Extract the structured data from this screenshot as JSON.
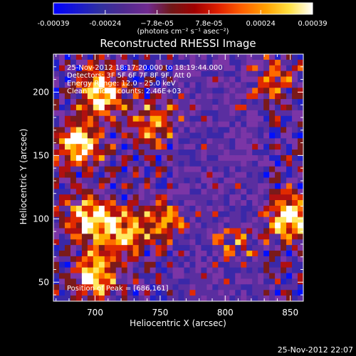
{
  "colors": {
    "background": "#000000",
    "foreground": "#ffffff",
    "colormap": [
      "#0010ff",
      "#2020c8",
      "#3a28a8",
      "#5a2ea0",
      "#7b35a6",
      "#7a1a1a",
      "#b01010",
      "#e02a00",
      "#ff6a00",
      "#ffb000",
      "#ffe860",
      "#ffffff"
    ]
  },
  "colorbar": {
    "ticks": [
      "-0.00039",
      "-0.00024",
      "−7.8e-05",
      "7.8e-05",
      "0.00024",
      "0.00039"
    ],
    "unit_label": "(photons cm⁻² s⁻¹ asec⁻²)"
  },
  "footer": {
    "timestamp": "25-Nov-2012 22:07"
  },
  "chart_data": {
    "type": "heatmap",
    "title": "Reconstructed RHESSI Image",
    "xlabel": "Heliocentric X (arcsec)",
    "ylabel": "Heliocentric Y (arcsec)",
    "xlim": [
      668,
      860
    ],
    "ylim": [
      35,
      230
    ],
    "x_ticks": [
      700,
      750,
      800,
      850
    ],
    "y_ticks": [
      50,
      100,
      150,
      200
    ],
    "value_range": [
      -0.00039,
      0.00039
    ],
    "info_lines": [
      "25-Nov-2012 18:17:20.000 to 18:19:44.000",
      "Detectors: 3F 5F 6F 7F 8F 9F, Att 0",
      "Energy Range: 12.0 - 25.0 keV",
      "Clean     Total counts: 2.46E+03"
    ],
    "peak_annotation": "Position of Peak = [686,161]",
    "peak_position": [
      686,
      161
    ],
    "bright_regions": [
      {
        "x": 705,
        "y": 200,
        "relative_intensity": 1.0
      },
      {
        "x": 688,
        "y": 160,
        "relative_intensity": 1.0
      },
      {
        "x": 695,
        "y": 100,
        "relative_intensity": 0.95
      },
      {
        "x": 722,
        "y": 90,
        "relative_intensity": 0.8
      },
      {
        "x": 700,
        "y": 55,
        "relative_intensity": 0.9
      },
      {
        "x": 745,
        "y": 175,
        "relative_intensity": 0.65
      },
      {
        "x": 755,
        "y": 100,
        "relative_intensity": 0.6
      },
      {
        "x": 835,
        "y": 210,
        "relative_intensity": 0.55
      },
      {
        "x": 850,
        "y": 100,
        "relative_intensity": 0.95
      },
      {
        "x": 808,
        "y": 80,
        "relative_intensity": 0.55
      }
    ]
  }
}
